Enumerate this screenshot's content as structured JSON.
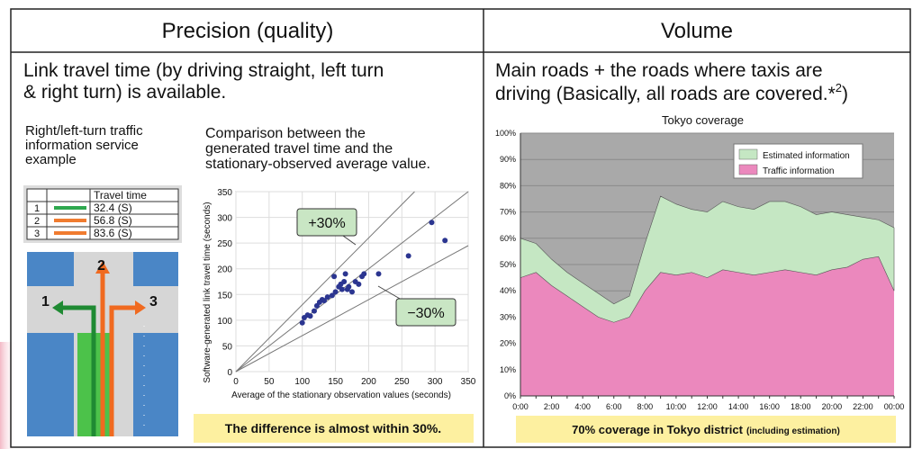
{
  "header": {
    "left": "Precision (quality)",
    "right": "Volume"
  },
  "left": {
    "summary_lines": [
      "Link travel time (by driving straight, left turn",
      "& right turn) is available."
    ],
    "example_caption": [
      "Right/left-turn traffic",
      "information service",
      "example"
    ],
    "travel_table": {
      "header": "Travel time",
      "rows": [
        [
          "1",
          "32.4 (S)"
        ],
        [
          "2",
          "56.8 (S)"
        ],
        [
          "3",
          "83.6 (S)"
        ]
      ]
    },
    "intersection_labels": [
      "1",
      "2",
      "3"
    ],
    "comparison_caption": [
      "Comparison between the",
      "generated travel time and the",
      "stationary-observed average value."
    ],
    "scatter": {
      "type": "scatter",
      "x": [
        100,
        103,
        108,
        112,
        118,
        122,
        126,
        130,
        133,
        138,
        145,
        150,
        148,
        155,
        158,
        160,
        163,
        165,
        168,
        170,
        175,
        180,
        185,
        190,
        193,
        215,
        260,
        295,
        315
      ],
      "y": [
        95,
        105,
        110,
        108,
        118,
        128,
        135,
        140,
        138,
        145,
        148,
        155,
        185,
        165,
        170,
        160,
        175,
        190,
        160,
        165,
        155,
        175,
        170,
        185,
        190,
        190,
        225,
        290,
        255
      ],
      "color": "#2b3590",
      "xlim": [
        0,
        350
      ],
      "ylim": [
        0,
        350
      ],
      "xticks": [
        0,
        50,
        100,
        150,
        200,
        250,
        300,
        350
      ],
      "yticks": [
        0,
        50,
        100,
        150,
        200,
        250,
        300,
        350
      ],
      "grid": true,
      "xlabel": "Average of the stationary observation values (seconds)",
      "ylabel": "Software-generated link travel time (seconds)",
      "annotations": [
        "+30%",
        "−30%"
      ]
    },
    "note": "The difference is almost within 30%."
  },
  "right": {
    "summary_lines": [
      "Main roads + the roads where taxis are",
      "driving (Basically, all roads are covered.*"
    ],
    "footnote_mark": "2",
    "closing": ")",
    "coverage": {
      "type": "area",
      "stacked": true,
      "title": "Tokyo coverage",
      "categories": [
        "0:00",
        null,
        "2:00",
        null,
        "4:00",
        null,
        "6:00",
        null,
        "8:00",
        null,
        "10:00",
        null,
        "12:00",
        null,
        "14:00",
        null,
        "16:00",
        null,
        "18:00",
        null,
        "20:00",
        null,
        "22:00",
        null,
        "00:00"
      ],
      "series": [
        {
          "name": "Traffic information",
          "color": "#eb88bd",
          "values": [
            45,
            47,
            42,
            38,
            34,
            30,
            28,
            30,
            40,
            47,
            46,
            47,
            45,
            48,
            47,
            46,
            47,
            48,
            47,
            46,
            48,
            49,
            52,
            53,
            40
          ]
        },
        {
          "name": "Estimated information",
          "color": "#c5e7c3",
          "values": [
            15,
            11,
            10,
            9,
            9,
            9,
            7,
            8,
            18,
            29,
            27,
            24,
            25,
            26,
            25,
            25,
            27,
            26,
            25,
            23,
            22,
            20,
            16,
            14,
            24
          ]
        }
      ],
      "ylim": [
        0,
        100
      ],
      "yticks": [
        {
          "value": 0,
          "label": "0%"
        },
        {
          "value": 10,
          "label": "10%"
        },
        {
          "value": 20,
          "label": "20%"
        },
        {
          "value": 30,
          "label": "30%"
        },
        {
          "value": 40,
          "label": "40%"
        },
        {
          "value": 50,
          "label": "50%"
        },
        {
          "value": 60,
          "label": "60%"
        },
        {
          "value": 70,
          "label": "70%"
        },
        {
          "value": 80,
          "label": "80%"
        },
        {
          "value": 90,
          "label": "90%"
        },
        {
          "value": 100,
          "label": "100%"
        }
      ],
      "grid": true,
      "legend": "top-right"
    },
    "note": {
      "main": "70% coverage in Tokyo district",
      "small": "(including estimation)"
    }
  }
}
